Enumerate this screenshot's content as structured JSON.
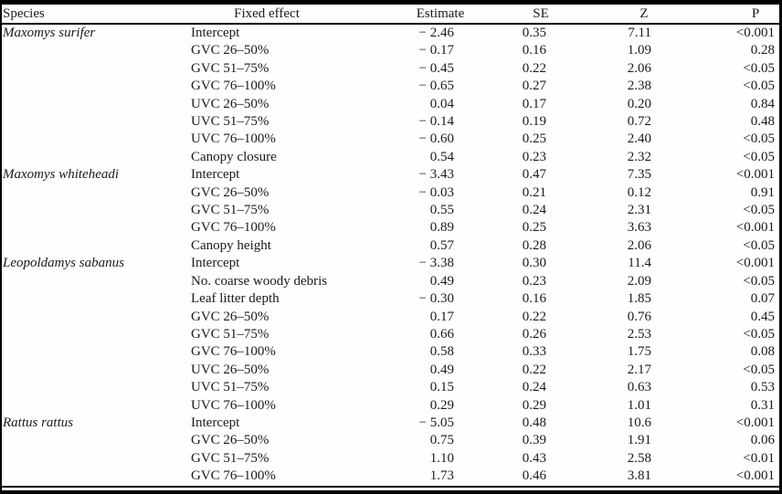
{
  "colors": {
    "scan_edge": "#000000",
    "paper_background": "#fefefe",
    "text": "#1a1a1a"
  },
  "table": {
    "columns": [
      "Species",
      "Fixed effect",
      "Estimate",
      "SE",
      "Z",
      "P"
    ],
    "rows": [
      {
        "species": "Maxomys surifer",
        "effect": "Intercept",
        "est": "− 2.46",
        "se": "0.35",
        "z": "7.11",
        "p": "<0.001"
      },
      {
        "species": "",
        "effect": "GVC 26–50%",
        "est": "− 0.17",
        "se": "0.16",
        "z": "1.09",
        "p": "0.28"
      },
      {
        "species": "",
        "effect": "GVC 51–75%",
        "est": "− 0.45",
        "se": "0.22",
        "z": "2.06",
        "p": "<0.05"
      },
      {
        "species": "",
        "effect": "GVC 76–100%",
        "est": "− 0.65",
        "se": "0.27",
        "z": "2.38",
        "p": "<0.05"
      },
      {
        "species": "",
        "effect": "UVC 26–50%",
        "est": "0.04",
        "se": "0.17",
        "z": "0.20",
        "p": "0.84"
      },
      {
        "species": "",
        "effect": "UVC 51–75%",
        "est": "− 0.14",
        "se": "0.19",
        "z": "0.72",
        "p": "0.48"
      },
      {
        "species": "",
        "effect": "UVC 76–100%",
        "est": "− 0.60",
        "se": "0.25",
        "z": "2.40",
        "p": "<0.05"
      },
      {
        "species": "",
        "effect": "Canopy closure",
        "est": "0.54",
        "se": "0.23",
        "z": "2.32",
        "p": "<0.05"
      },
      {
        "species": "Maxomys whiteheadi",
        "effect": "Intercept",
        "est": "− 3.43",
        "se": "0.47",
        "z": "7.35",
        "p": "<0.001"
      },
      {
        "species": "",
        "effect": "GVC 26–50%",
        "est": "− 0.03",
        "se": "0.21",
        "z": "0.12",
        "p": "0.91"
      },
      {
        "species": "",
        "effect": "GVC 51–75%",
        "est": "0.55",
        "se": "0.24",
        "z": "2.31",
        "p": "<0.05"
      },
      {
        "species": "",
        "effect": "GVC 76–100%",
        "est": "0.89",
        "se": "0.25",
        "z": "3.63",
        "p": "<0.001"
      },
      {
        "species": "",
        "effect": "Canopy height",
        "est": "0.57",
        "se": "0.28",
        "z": "2.06",
        "p": "<0.05"
      },
      {
        "species": "Leopoldamys sabanus",
        "effect": "Intercept",
        "est": "− 3.38",
        "se": "0.30",
        "z": "11.4",
        "p": "<0.001"
      },
      {
        "species": "",
        "effect": "No. coarse woody debris",
        "est": "0.49",
        "se": "0.23",
        "z": "2.09",
        "p": "<0.05"
      },
      {
        "species": "",
        "effect": "Leaf litter depth",
        "est": "− 0.30",
        "se": "0.16",
        "z": "1.85",
        "p": "0.07"
      },
      {
        "species": "",
        "effect": "GVC 26–50%",
        "est": "0.17",
        "se": "0.22",
        "z": "0.76",
        "p": "0.45"
      },
      {
        "species": "",
        "effect": "GVC 51–75%",
        "est": "0.66",
        "se": "0.26",
        "z": "2.53",
        "p": "<0.05"
      },
      {
        "species": "",
        "effect": "GVC 76–100%",
        "est": "0.58",
        "se": "0.33",
        "z": "1.75",
        "p": "0.08"
      },
      {
        "species": "",
        "effect": "UVC 26–50%",
        "est": "0.49",
        "se": "0.22",
        "z": "2.17",
        "p": "<0.05"
      },
      {
        "species": "",
        "effect": "UVC 51–75%",
        "est": "0.15",
        "se": "0.24",
        "z": "0.63",
        "p": "0.53"
      },
      {
        "species": "",
        "effect": "UVC 76–100%",
        "est": "0.29",
        "se": "0.29",
        "z": "1.01",
        "p": "0.31"
      },
      {
        "species": "Rattus rattus",
        "effect": "Intercept",
        "est": "− 5.05",
        "se": "0.48",
        "z": "10.6",
        "p": "<0.001"
      },
      {
        "species": "",
        "effect": "GVC 26–50%",
        "est": "0.75",
        "se": "0.39",
        "z": "1.91",
        "p": "0.06"
      },
      {
        "species": "",
        "effect": "GVC 51–75%",
        "est": "1.10",
        "se": "0.43",
        "z": "2.58",
        "p": "<0.01"
      },
      {
        "species": "",
        "effect": "GVC 76–100%",
        "est": "1.73",
        "se": "0.46",
        "z": "3.81",
        "p": "<0.001"
      }
    ]
  }
}
